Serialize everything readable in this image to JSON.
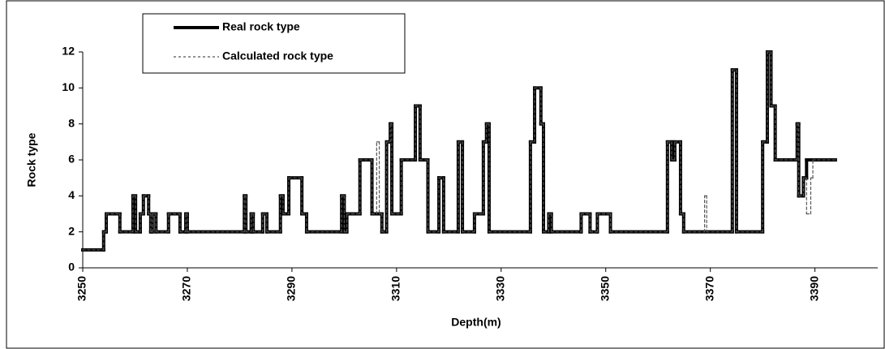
{
  "chart_data": {
    "type": "line",
    "step": true,
    "x_label": "Depth(m)",
    "y_label": "Rock type",
    "xlim": [
      3250,
      3402
    ],
    "xticks": [
      3250,
      3270,
      3290,
      3310,
      3330,
      3350,
      3370,
      3390
    ],
    "ylim": [
      0,
      12
    ],
    "yticks": [
      0,
      2,
      4,
      6,
      8,
      10,
      12
    ],
    "legend": "top-left",
    "series": [
      {
        "name": "Real rock type",
        "color": "#000000",
        "style": "solid",
        "x": [
          3250,
          3254.0,
          3254.5,
          3257.1,
          3259.6,
          3260.1,
          3261.0,
          3261.6,
          3262.6,
          3263.0,
          3263.3,
          3264.0,
          3266.4,
          3268.6,
          3269.7,
          3270.0,
          3280.9,
          3281.2,
          3282.2,
          3282.6,
          3284.4,
          3285.2,
          3287.8,
          3288.3,
          3289.4,
          3291.9,
          3292.8,
          3299.5,
          3300.0,
          3300.5,
          3303.0,
          3305.3,
          3307.2,
          3308.1,
          3308.8,
          3309.1,
          3310.9,
          3313.6,
          3314.5,
          3316.0,
          3318.1,
          3319.0,
          3321.8,
          3322.6,
          3324.9,
          3326.6,
          3327.2,
          3327.7,
          3335.6,
          3336.4,
          3337.6,
          3338.1,
          3339.1,
          3339.6,
          3345.3,
          3347.0,
          3348.4,
          3350.9,
          3361.8,
          3362.6,
          3363.2,
          3364.3,
          3364.9,
          3374.2,
          3375.0,
          3380.0,
          3380.9,
          3381.6,
          3382.4,
          3386.6,
          3386.9,
          3387.8,
          3388.4,
          3393.9
        ],
        "values": [
          1,
          2,
          3,
          2,
          4,
          2,
          3,
          4,
          3,
          2,
          3,
          2,
          3,
          2,
          3,
          2,
          4,
          2,
          3,
          2,
          3,
          2,
          4,
          3,
          5,
          3,
          2,
          4,
          2,
          3,
          6,
          3,
          2,
          7,
          8,
          3,
          6,
          9,
          6,
          2,
          5,
          2,
          7,
          2,
          3,
          7,
          8,
          2,
          7,
          10,
          8,
          2,
          3,
          2,
          3,
          2,
          3,
          2,
          7,
          6,
          7,
          3,
          2,
          11,
          2,
          7,
          12,
          9,
          6,
          8,
          4,
          5,
          6,
          6
        ]
      },
      {
        "name": "Calculated rock type",
        "color": "#555555",
        "style": "dashed",
        "x": [
          3250,
          3254.0,
          3254.5,
          3257.1,
          3259.6,
          3260.1,
          3261.0,
          3261.6,
          3262.6,
          3263.0,
          3263.3,
          3264.0,
          3266.4,
          3268.6,
          3269.7,
          3270.0,
          3280.9,
          3281.2,
          3282.2,
          3282.6,
          3284.4,
          3285.2,
          3287.8,
          3288.3,
          3289.4,
          3291.9,
          3292.8,
          3299.5,
          3300.0,
          3300.5,
          3303.0,
          3305.3,
          3306.2,
          3306.7,
          3307.2,
          3308.1,
          3308.8,
          3309.1,
          3310.9,
          3313.6,
          3314.5,
          3316.0,
          3318.1,
          3319.0,
          3321.8,
          3322.6,
          3324.9,
          3326.6,
          3327.2,
          3327.7,
          3335.6,
          3336.4,
          3337.6,
          3338.1,
          3339.1,
          3339.6,
          3345.3,
          3347.0,
          3348.4,
          3350.9,
          3361.8,
          3362.6,
          3363.2,
          3364.3,
          3364.9,
          3368.9,
          3369.3,
          3374.2,
          3375.0,
          3380.0,
          3380.9,
          3381.6,
          3382.4,
          3386.6,
          3386.9,
          3387.8,
          3388.4,
          3389.2,
          3389.6,
          3393.9
        ],
        "values": [
          1,
          2,
          3,
          2,
          4,
          2,
          3,
          4,
          3,
          2,
          3,
          2,
          3,
          2,
          3,
          2,
          4,
          2,
          3,
          2,
          3,
          2,
          4,
          3,
          5,
          3,
          2,
          4,
          2,
          3,
          6,
          3,
          7,
          3,
          2,
          7,
          8,
          3,
          6,
          9,
          6,
          2,
          5,
          2,
          7,
          2,
          3,
          7,
          8,
          2,
          7,
          10,
          8,
          2,
          3,
          2,
          3,
          2,
          3,
          2,
          7,
          6,
          7,
          3,
          2,
          4,
          2,
          11,
          2,
          7,
          12,
          9,
          6,
          8,
          4,
          5,
          3,
          5,
          6,
          6
        ]
      }
    ]
  }
}
